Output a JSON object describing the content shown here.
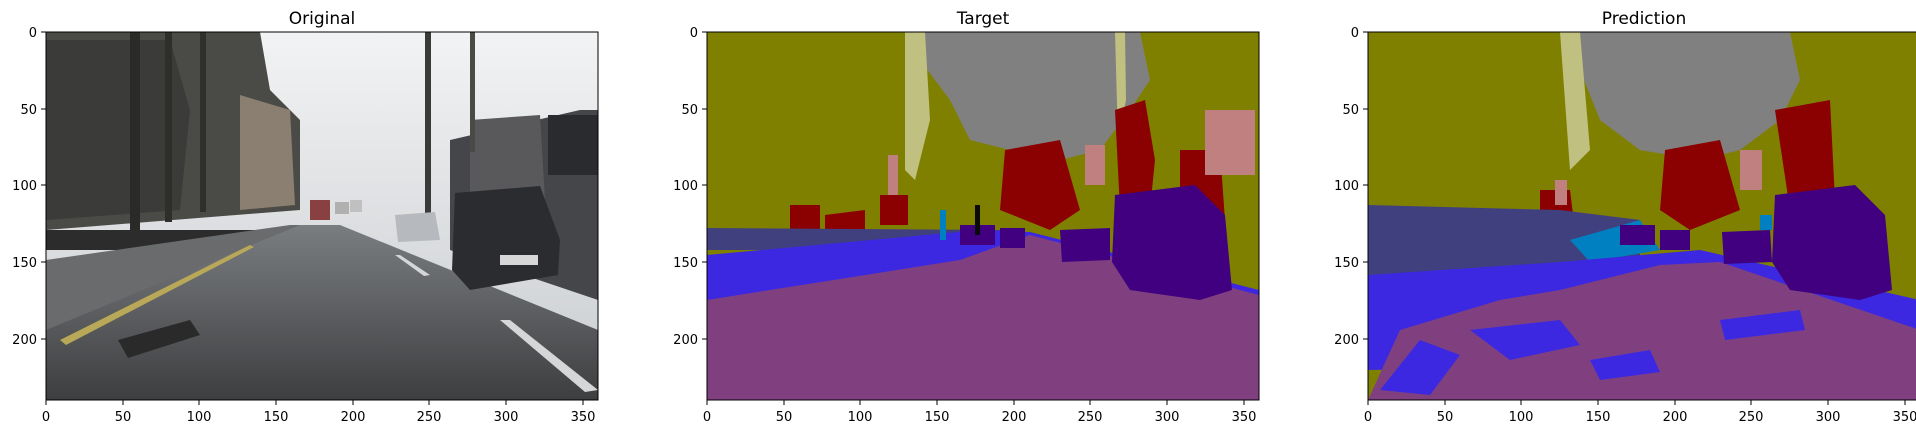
{
  "panels": [
    {
      "title": "Original",
      "image": "street-scene-photo",
      "x_ticks": [
        "0",
        "50",
        "100",
        "150",
        "200",
        "250",
        "300",
        "350"
      ],
      "y_ticks": [
        "0",
        "50",
        "100",
        "150",
        "200"
      ]
    },
    {
      "title": "Target",
      "image": "ground-truth-segmentation-mask",
      "x_ticks": [
        "0",
        "50",
        "100",
        "150",
        "200",
        "250",
        "300",
        "350"
      ],
      "y_ticks": [
        "0",
        "50",
        "100",
        "150",
        "200"
      ]
    },
    {
      "title": "Prediction",
      "image": "predicted-segmentation-mask",
      "x_ticks": [
        "0",
        "50",
        "100",
        "150",
        "200",
        "250",
        "300",
        "350"
      ],
      "y_ticks": [
        "0",
        "50",
        "100",
        "150",
        "200"
      ]
    }
  ],
  "image_extent": {
    "width": 360,
    "height": 240
  },
  "palette": {
    "sky": "#808080",
    "building": "#808000",
    "tree": "#8b0000",
    "sign": "#c08080",
    "sidewalk": "#3c28e0",
    "road": "#804080",
    "car": "#400080",
    "fence": "#40407f",
    "pole": "#c0c080",
    "pedestrian": "#0080c0"
  }
}
